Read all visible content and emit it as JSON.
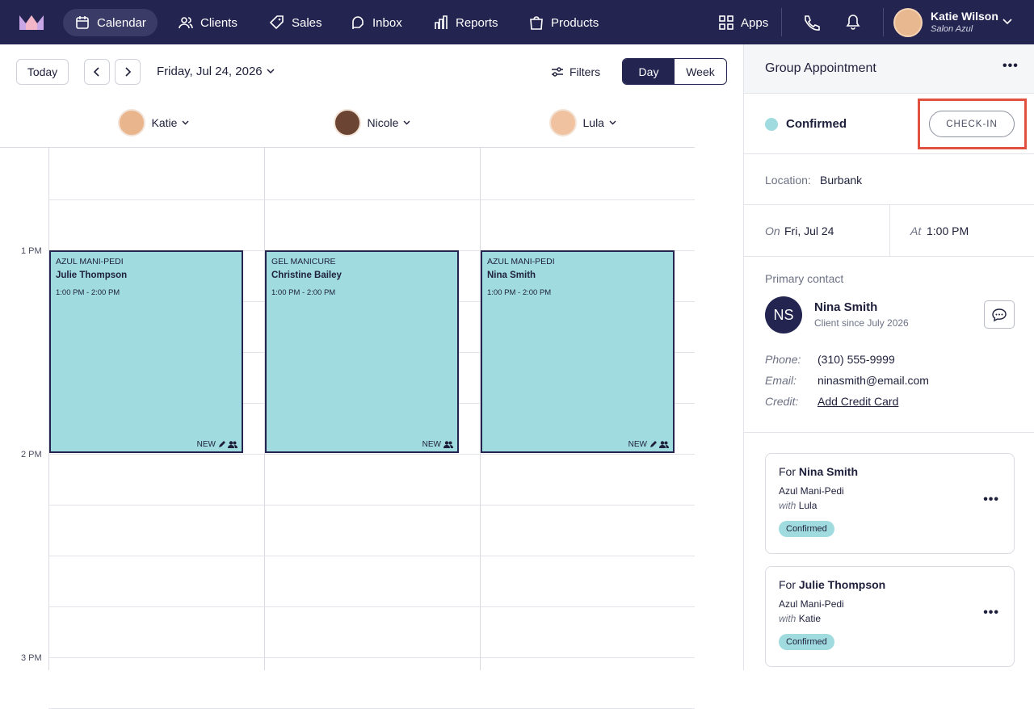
{
  "nav": {
    "items": [
      "Calendar",
      "Clients",
      "Sales",
      "Inbox",
      "Reports",
      "Products"
    ],
    "active": 0,
    "apps": "Apps",
    "user": {
      "name": "Katie Wilson",
      "salon": "Salon Azul"
    }
  },
  "toolbar": {
    "today": "Today",
    "date": "Friday, Jul 24, 2026",
    "filters": "Filters",
    "views": [
      "Day",
      "Week"
    ],
    "active_view": 0
  },
  "staff": [
    "Katie",
    "Nicole",
    "Lula"
  ],
  "times": [
    "1 PM",
    "2 PM",
    "3 PM"
  ],
  "appointments": [
    {
      "service": "AZUL MANI-PEDI",
      "client": "Julie Thompson",
      "time": "1:00 PM - 2:00 PM",
      "badge": "NEW"
    },
    {
      "service": "GEL MANICURE",
      "client": "Christine Bailey",
      "time": "1:00 PM - 2:00 PM",
      "badge": "NEW"
    },
    {
      "service": "AZUL MANI-PEDI",
      "client": "Nina Smith",
      "time": "1:00 PM - 2:00 PM",
      "badge": "NEW"
    }
  ],
  "panel": {
    "title": "Group Appointment",
    "status": "Confirmed",
    "check_in": "CHECK-IN",
    "location": {
      "label": "Location:",
      "value": "Burbank"
    },
    "date": {
      "label": "On",
      "value": "Fri, Jul 24"
    },
    "time": {
      "label": "At",
      "value": "1:00 PM"
    },
    "contact": {
      "heading": "Primary contact",
      "initials": "NS",
      "name": "Nina Smith",
      "since": "Client since July 2026",
      "fields": [
        {
          "label": "Phone:",
          "value": "(310) 555-9999"
        },
        {
          "label": "Email:",
          "value": "ninasmith@email.com"
        },
        {
          "label": "Credit:",
          "value": "Add Credit Card"
        }
      ]
    },
    "bookings": [
      {
        "for": "For",
        "client": "Nina Smith",
        "service": "Azul Mani-Pedi",
        "with": "with",
        "staff": "Lula",
        "status": "Confirmed"
      },
      {
        "for": "For",
        "client": "Julie Thompson",
        "service": "Azul Mani-Pedi",
        "with": "with",
        "staff": "Katie",
        "status": "Confirmed"
      }
    ]
  }
}
